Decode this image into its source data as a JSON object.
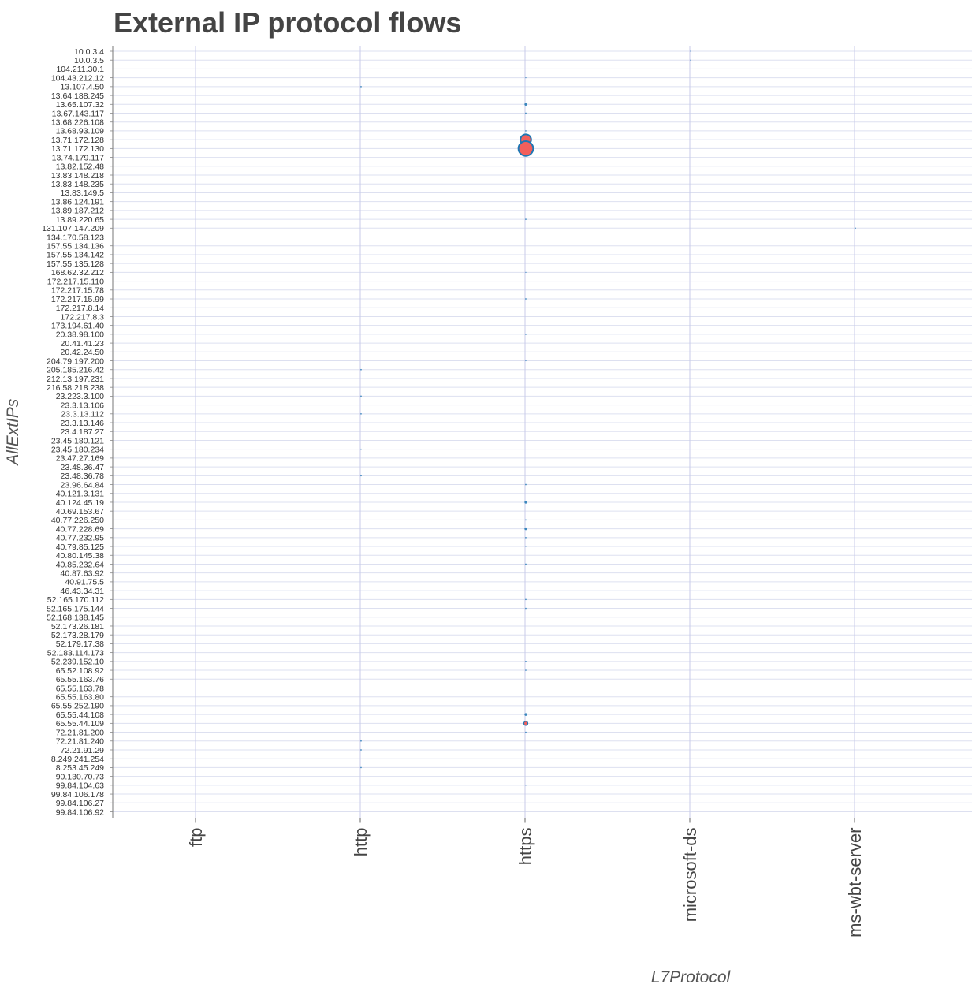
{
  "chart_data": {
    "type": "scatter",
    "title": "External IP protocol flows",
    "xlabel": "L7Protocol",
    "ylabel": "AllExtIPs",
    "x_categories": [
      "ftp",
      "http",
      "https",
      "microsoft-ds",
      "ms-wbt-server"
    ],
    "y_categories": [
      "10.0.3.4",
      "10.0.3.5",
      "104.211.30.1",
      "104.43.212.12",
      "13.107.4.50",
      "13.64.188.245",
      "13.65.107.32",
      "13.67.143.117",
      "13.68.226.108",
      "13.68.93.109",
      "13.71.172.128",
      "13.71.172.130",
      "13.74.179.117",
      "13.82.152.48",
      "13.83.148.218",
      "13.83.148.235",
      "13.83.149.5",
      "13.86.124.191",
      "13.89.187.212",
      "13.89.220.65",
      "131.107.147.209",
      "134.170.58.123",
      "157.55.134.136",
      "157.55.134.142",
      "157.55.135.128",
      "168.62.32.212",
      "172.217.15.110",
      "172.217.15.78",
      "172.217.15.99",
      "172.217.8.14",
      "172.217.8.3",
      "173.194.61.40",
      "20.38.98.100",
      "20.41.41.23",
      "20.42.24.50",
      "204.79.197.200",
      "205.185.216.42",
      "212.13.197.231",
      "216.58.218.238",
      "23.223.3.100",
      "23.3.13.106",
      "23.3.13.112",
      "23.3.13.146",
      "23.4.187.27",
      "23.45.180.121",
      "23.45.180.234",
      "23.47.27.169",
      "23.48.36.47",
      "23.48.36.78",
      "23.96.64.84",
      "40.121.3.131",
      "40.124.45.19",
      "40.69.153.67",
      "40.77.226.250",
      "40.77.228.69",
      "40.77.232.95",
      "40.79.85.125",
      "40.80.145.38",
      "40.85.232.64",
      "40.87.63.92",
      "40.91.75.5",
      "46.43.34.31",
      "52.165.170.112",
      "52.165.175.144",
      "52.168.138.145",
      "52.173.26.181",
      "52.173.28.179",
      "52.179.17.38",
      "52.183.114.173",
      "52.239.152.10",
      "65.52.108.92",
      "65.55.163.76",
      "65.55.163.78",
      "65.55.163.80",
      "65.55.252.190",
      "65.55.44.108",
      "65.55.44.109",
      "72.21.81.200",
      "72.21.81.240",
      "72.21.91.29",
      "8.249.241.254",
      "8.253.45.249",
      "90.130.70.73",
      "99.84.104.63",
      "99.84.106.178",
      "99.84.106.27",
      "99.84.106.92"
    ],
    "points": [
      {
        "x": "microsoft-ds",
        "y": "10.0.3.4",
        "size": 0.3
      },
      {
        "x": "microsoft-ds",
        "y": "10.0.3.5",
        "size": 0.3
      },
      {
        "x": "https",
        "y": "104.43.212.12",
        "size": 0.3
      },
      {
        "x": "http",
        "y": "13.107.4.50",
        "size": 1
      },
      {
        "x": "https",
        "y": "13.65.107.32",
        "size": 2
      },
      {
        "x": "https",
        "y": "13.67.143.117",
        "size": 1
      },
      {
        "x": "https",
        "y": "13.68.93.109",
        "size": 1
      },
      {
        "x": "https",
        "y": "13.71.172.128",
        "size": 8,
        "highlight": true
      },
      {
        "x": "https",
        "y": "13.71.172.130",
        "size": 11,
        "highlight": true
      },
      {
        "x": "https",
        "y": "13.89.220.65",
        "size": 1
      },
      {
        "x": "ms-wbt-server",
        "y": "131.107.147.209",
        "size": 1
      },
      {
        "x": "https",
        "y": "168.62.32.212",
        "size": 0.3
      },
      {
        "x": "https",
        "y": "172.217.15.99",
        "size": 1
      },
      {
        "x": "https",
        "y": "20.38.98.100",
        "size": 1
      },
      {
        "x": "https",
        "y": "204.79.197.200",
        "size": 0.5
      },
      {
        "x": "http",
        "y": "205.185.216.42",
        "size": 1
      },
      {
        "x": "http",
        "y": "23.223.3.100",
        "size": 1
      },
      {
        "x": "http",
        "y": "23.3.13.112",
        "size": 1
      },
      {
        "x": "http",
        "y": "23.45.180.234",
        "size": 1
      },
      {
        "x": "http",
        "y": "23.48.36.78",
        "size": 1
      },
      {
        "x": "https",
        "y": "23.96.64.84",
        "size": 1
      },
      {
        "x": "https",
        "y": "40.124.45.19",
        "size": 2
      },
      {
        "x": "https",
        "y": "40.77.226.250",
        "size": 1
      },
      {
        "x": "https",
        "y": "40.77.228.69",
        "size": 2
      },
      {
        "x": "https",
        "y": "40.77.232.95",
        "size": 1
      },
      {
        "x": "https",
        "y": "40.79.85.125",
        "size": 0.3
      },
      {
        "x": "https",
        "y": "40.85.232.64",
        "size": 1
      },
      {
        "x": "https",
        "y": "52.165.170.112",
        "size": 1
      },
      {
        "x": "https",
        "y": "52.165.175.144",
        "size": 1
      },
      {
        "x": "https",
        "y": "52.239.152.10",
        "size": 1
      },
      {
        "x": "https",
        "y": "65.52.108.92",
        "size": 1
      },
      {
        "x": "https",
        "y": "65.55.44.108",
        "size": 2
      },
      {
        "x": "https",
        "y": "65.55.44.109",
        "size": 3,
        "highlight": true
      },
      {
        "x": "https",
        "y": "72.21.81.200",
        "size": 1
      },
      {
        "x": "http",
        "y": "72.21.81.240",
        "size": 1
      },
      {
        "x": "http",
        "y": "72.21.91.29",
        "size": 1
      },
      {
        "x": "http",
        "y": "8.253.45.249",
        "size": 1
      },
      {
        "x": "https",
        "y": "99.84.104.63",
        "size": 0.3
      }
    ],
    "colors": {
      "point": "#1f77b4",
      "highlight_fill": "#f25f5c",
      "gridline": "#dde0f0",
      "vgridline": "#c8cbea"
    },
    "grid": true
  }
}
